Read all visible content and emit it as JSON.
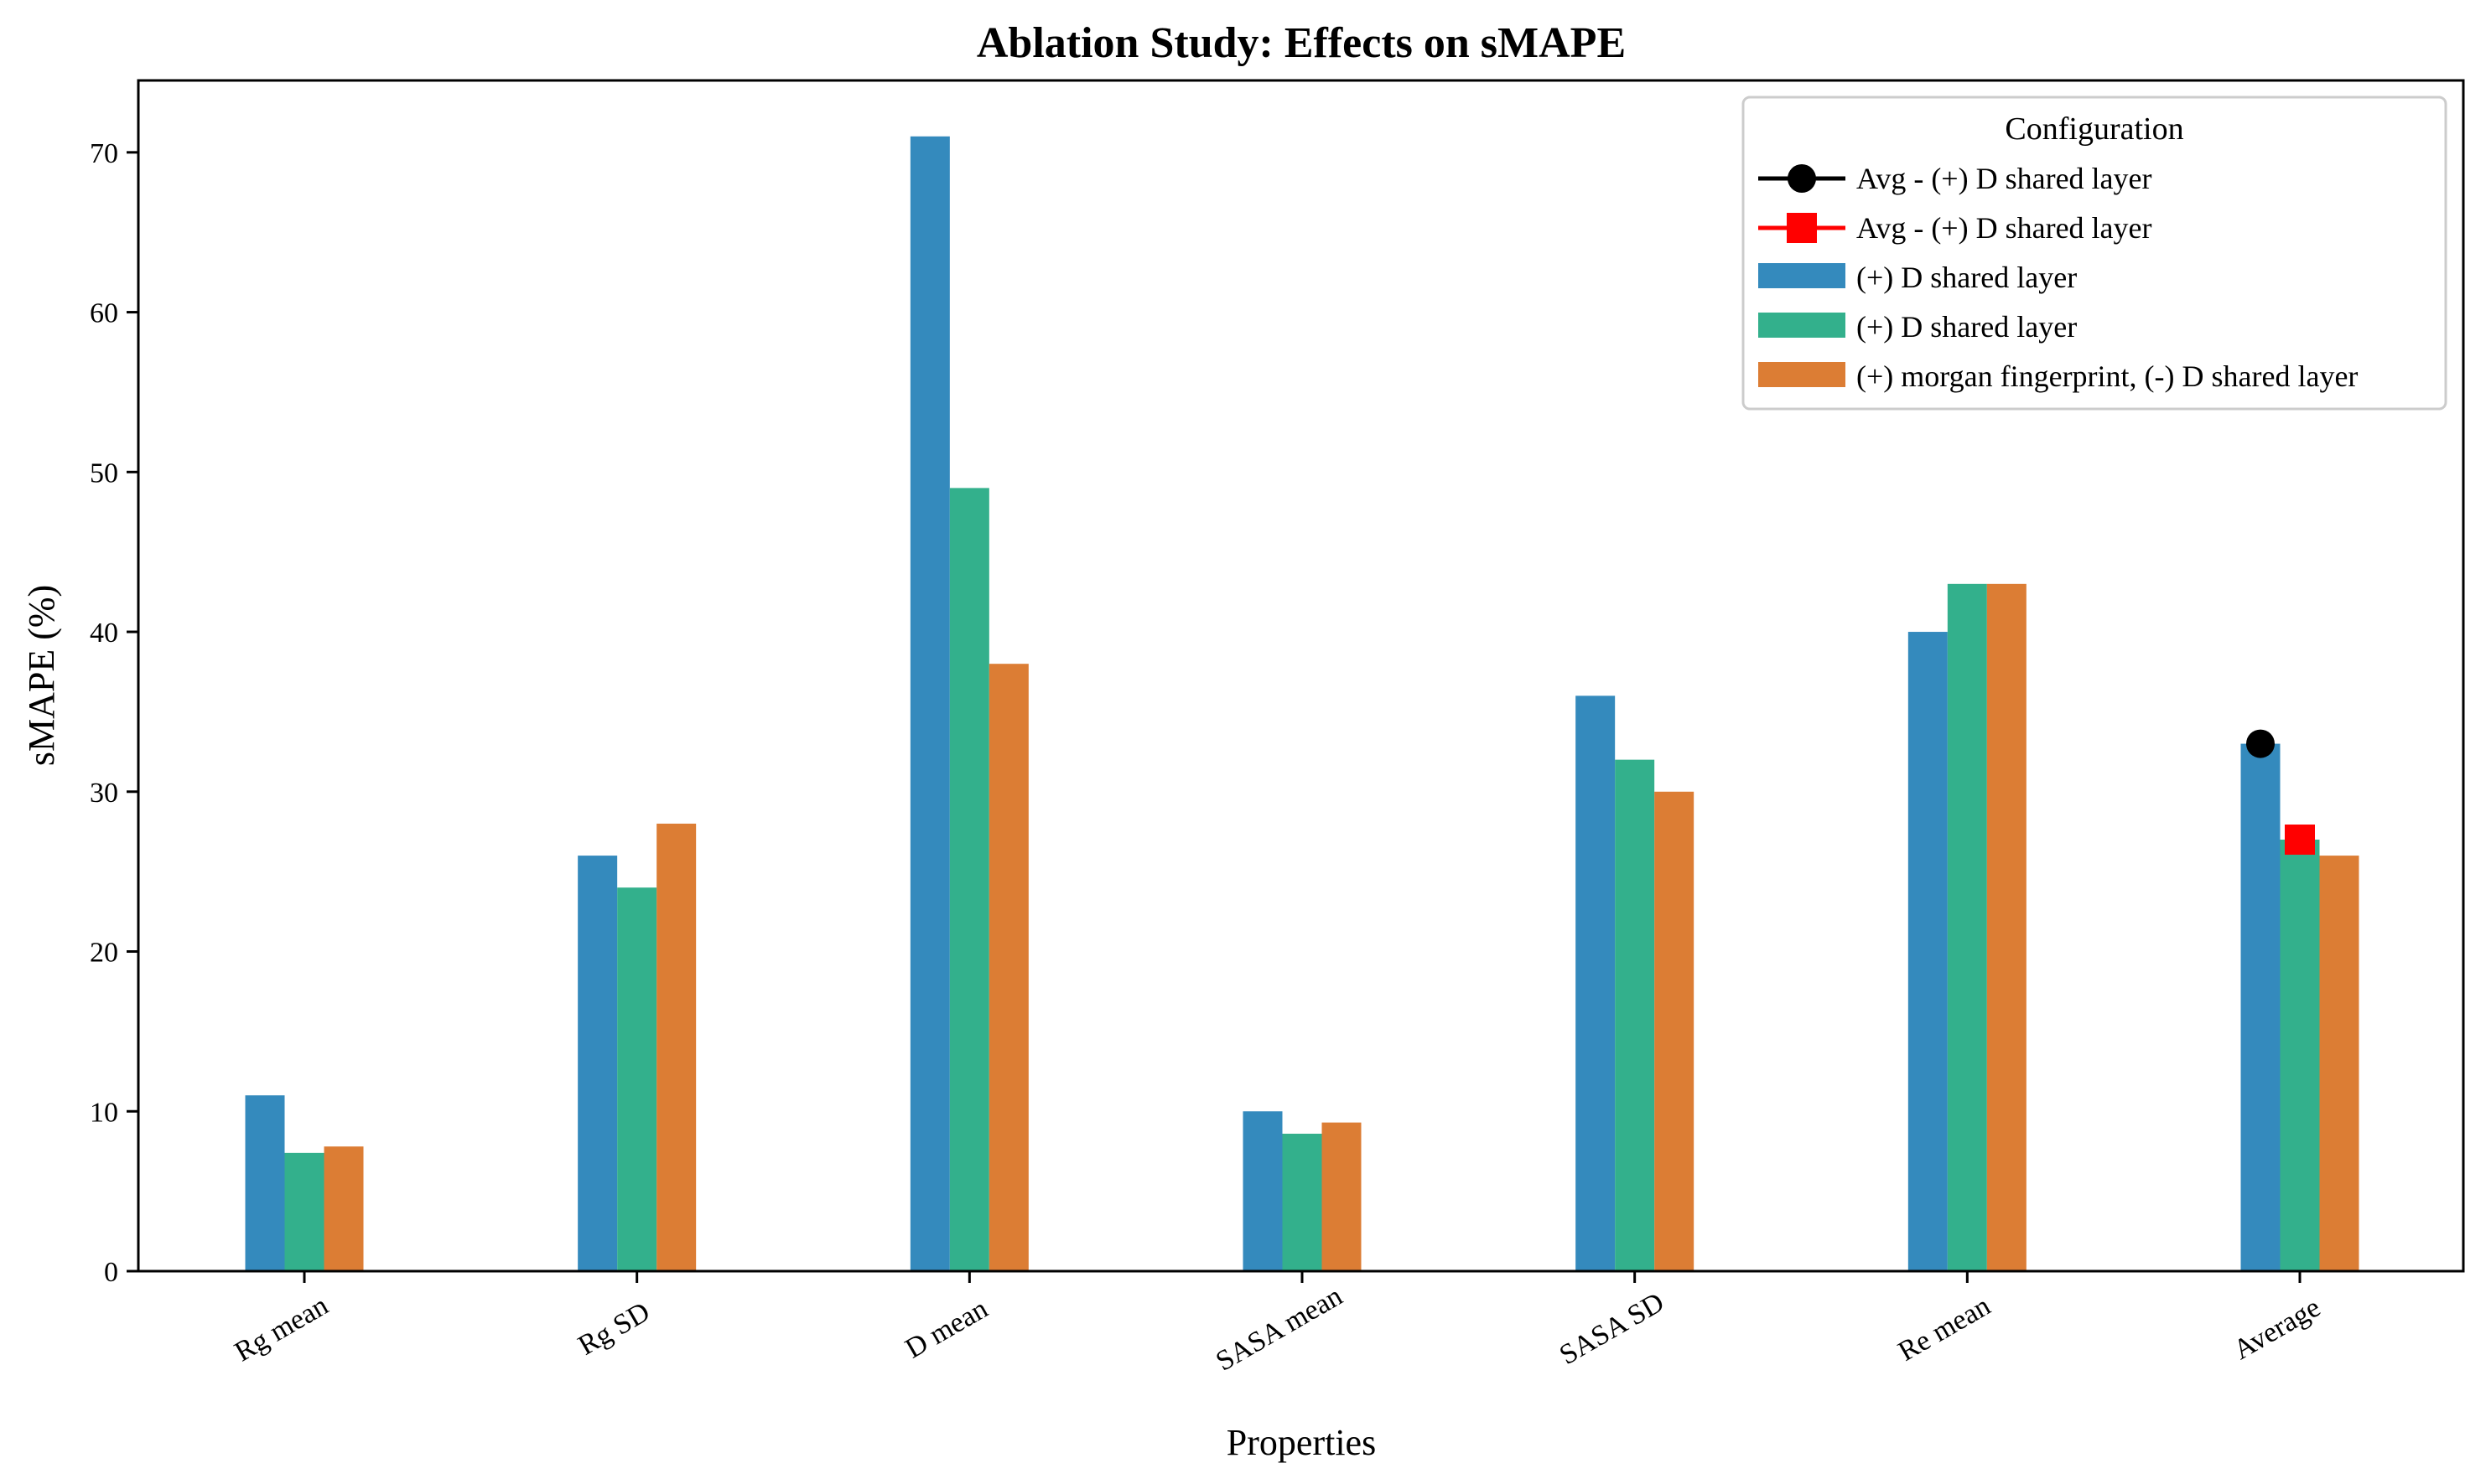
{
  "chart_data": {
    "type": "bar",
    "title": "Ablation Study: Effects on sMAPE",
    "xlabel": "Properties",
    "ylabel": "sMAPE (%)",
    "ylim": [
      0,
      74.5
    ],
    "yticks": [
      0,
      10,
      20,
      30,
      40,
      50,
      60,
      70
    ],
    "categories": [
      "Rg mean",
      "Rg SD",
      "D mean",
      "SASA mean",
      "SASA SD",
      "Re mean",
      "Average"
    ],
    "series": [
      {
        "name": "(+) D shared layer",
        "color": "#348ABD",
        "values": [
          11,
          26,
          71,
          10,
          36,
          40,
          33
        ]
      },
      {
        "name": "(+) D shared layer",
        "color": "#33B08C",
        "values": [
          7.4,
          24,
          49,
          8.6,
          32,
          43,
          27
        ]
      },
      {
        "name": "(+) morgan fingerprint, (-) D shared layer",
        "color": "#DC7D34",
        "values": [
          7.8,
          28,
          38,
          9.3,
          30,
          43,
          26
        ]
      }
    ],
    "markers": [
      {
        "name": "Avg - (+) D shared layer",
        "color": "#000000",
        "shape": "circle",
        "category": "Average",
        "series_index": 0,
        "value": 33
      },
      {
        "name": "Avg - (+) D shared layer",
        "color": "#FF0000",
        "shape": "square",
        "category": "Average",
        "series_index": 1,
        "value": 27
      }
    ],
    "legend": {
      "title": "Configuration",
      "position": "top-right",
      "entries": [
        {
          "label": "Avg - (+) D shared layer",
          "kind": "line-circle",
          "color": "#000000"
        },
        {
          "label": "Avg - (+) D shared layer",
          "kind": "line-square",
          "color": "#FF0000"
        },
        {
          "label": "(+) D shared layer",
          "kind": "patch",
          "color": "#348ABD"
        },
        {
          "label": "(+) D shared layer",
          "kind": "patch",
          "color": "#33B08C"
        },
        {
          "label": "(+) morgan fingerprint, (-) D shared layer",
          "kind": "patch",
          "color": "#DC7D34"
        }
      ]
    },
    "grid": false
  }
}
